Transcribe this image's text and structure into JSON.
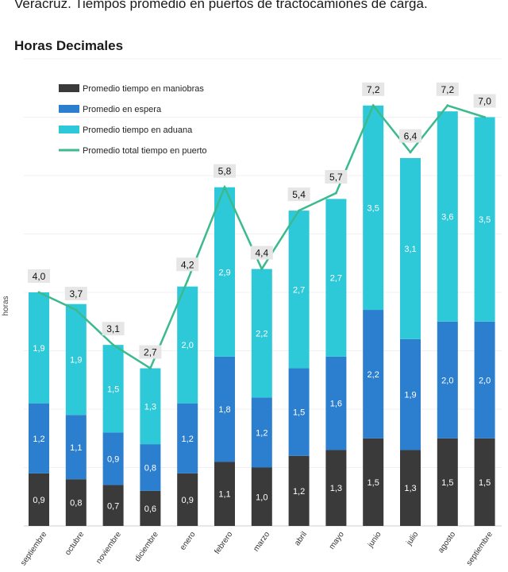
{
  "title": "Veracruz. Tiempos promedio en puertos de tractocamiones de carga.",
  "subtitle": "Horas Decimales",
  "chart_data": {
    "type": "bar",
    "stacked": true,
    "ylabel": "horas",
    "xlabel": "",
    "ylim": [
      0,
      8
    ],
    "grid": true,
    "legend_position": "top-left",
    "categories": [
      "septiembre",
      "octubre",
      "noviembre",
      "diciembre",
      "enero",
      "febrero",
      "marzo",
      "abril",
      "mayo",
      "junio",
      "julio",
      "agosto",
      "septiembre"
    ],
    "series": [
      {
        "name": "Promedio tiempo en maniobras",
        "color": "#3a3a3a",
        "kind": "bar",
        "values": [
          0.9,
          0.8,
          0.7,
          0.6,
          0.9,
          1.1,
          1.0,
          1.2,
          1.3,
          1.5,
          1.3,
          1.5,
          1.5
        ],
        "labels": [
          "0,9",
          "0,8",
          "0,7",
          "0,6",
          "0,9",
          "1,1",
          "1,0",
          "1,2",
          "1,3",
          "1,5",
          "1,3",
          "1,5",
          "1,5"
        ]
      },
      {
        "name": "Promedio en espera",
        "color": "#2b7fce",
        "kind": "bar",
        "values": [
          1.2,
          1.1,
          0.9,
          0.8,
          1.2,
          1.8,
          1.2,
          1.5,
          1.6,
          2.2,
          1.9,
          2.0,
          2.0
        ],
        "labels": [
          "1,2",
          "1,1",
          "0,9",
          "0,8",
          "1,2",
          "1,8",
          "1,2",
          "1,5",
          "1,6",
          "2,2",
          "1,9",
          "2,0",
          "2,0"
        ]
      },
      {
        "name": "Promedio tiempo en aduana",
        "color": "#2ec9d8",
        "kind": "bar",
        "values": [
          1.9,
          1.9,
          1.5,
          1.3,
          2.0,
          2.9,
          2.2,
          2.7,
          2.7,
          3.5,
          3.1,
          3.6,
          3.5
        ],
        "labels": [
          "1,9",
          "1,9",
          "1,5",
          "1,3",
          "2,0",
          "2,9",
          "2,2",
          "2,7",
          "2,7",
          "3,5",
          "3,1",
          "3,6",
          "3,5"
        ]
      },
      {
        "name": "Promedio total tiempo en puerto",
        "color": "#3cba8e",
        "kind": "line",
        "values": [
          4.0,
          3.7,
          3.1,
          2.7,
          4.2,
          5.8,
          4.4,
          5.4,
          5.7,
          7.2,
          6.4,
          7.2,
          7.0
        ],
        "labels": [
          "4,0",
          "3,7",
          "3,1",
          "2,7",
          "4,2",
          "5,8",
          "4,4",
          "5,4",
          "5,7",
          "7,2",
          "6,4",
          "7,2",
          "7,0"
        ]
      }
    ]
  }
}
